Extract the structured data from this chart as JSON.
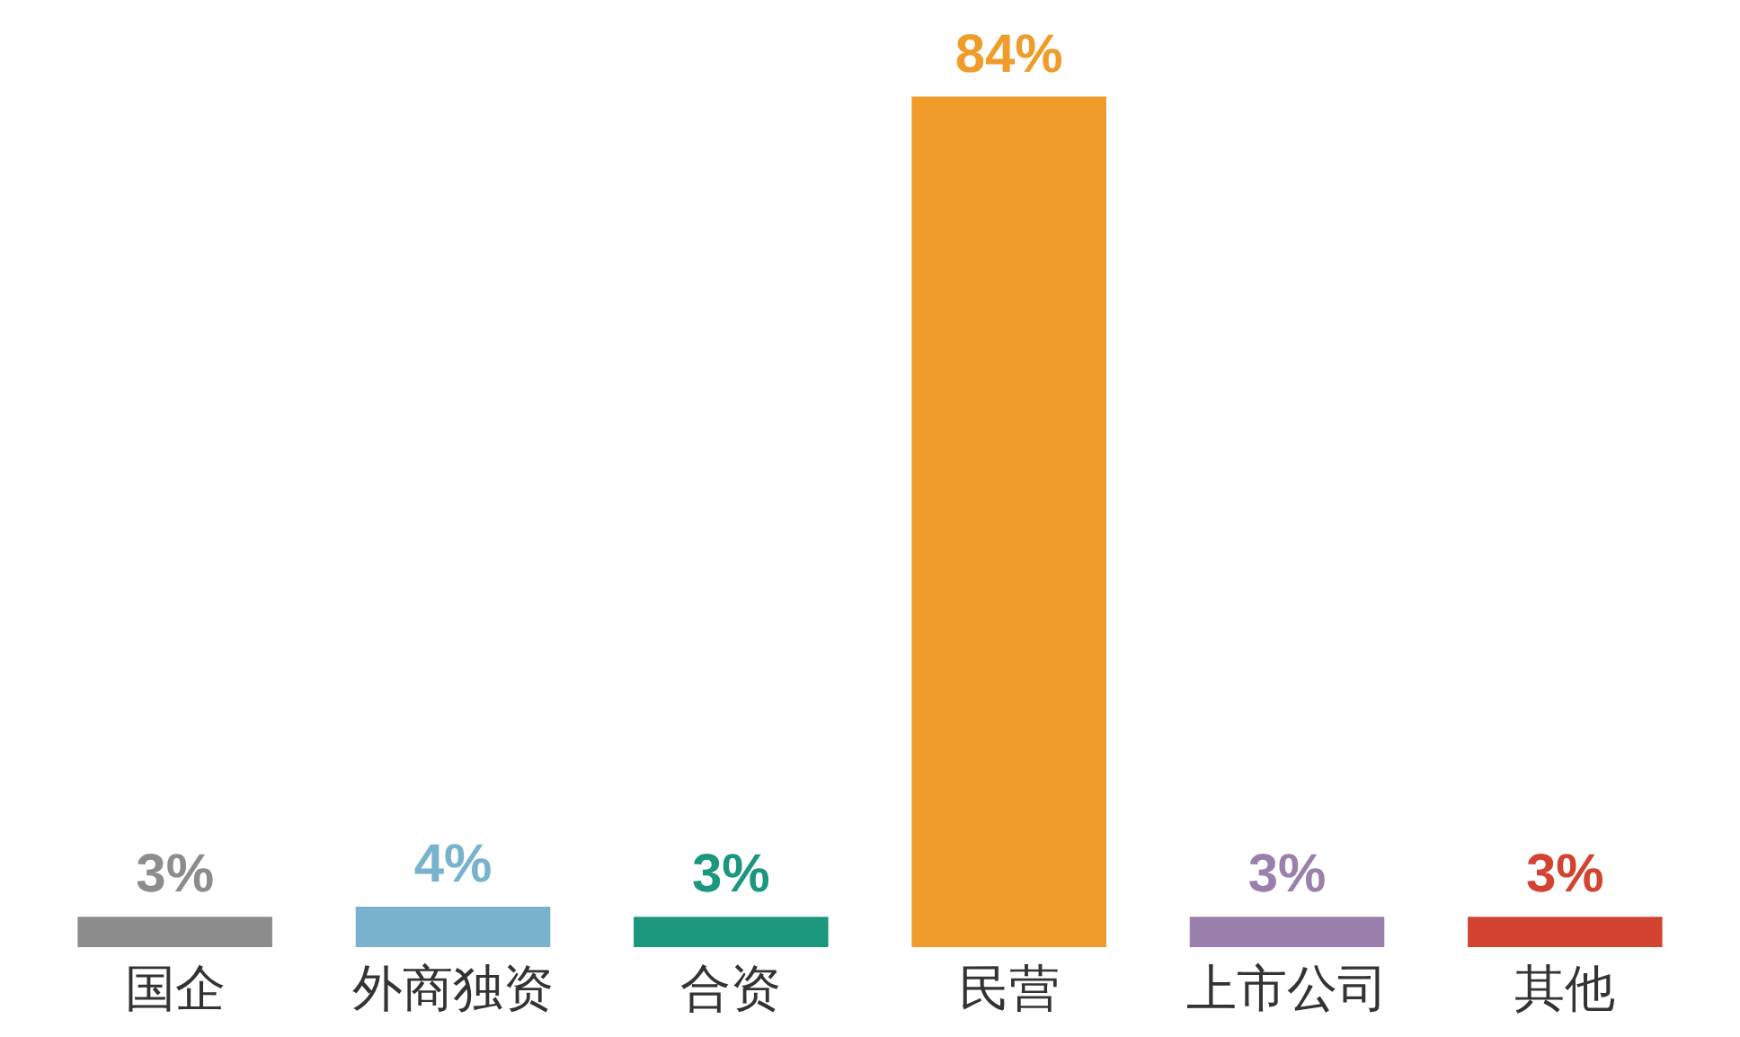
{
  "chart_data": {
    "type": "bar",
    "categories": [
      "国企",
      "外商独资",
      "合资",
      "民营",
      "上市公司",
      "其他"
    ],
    "values": [
      3,
      4,
      3,
      84,
      3,
      3
    ],
    "value_labels": [
      "3%",
      "4%",
      "3%",
      "84%",
      "3%",
      "3%"
    ],
    "colors": [
      "#8c8c8c",
      "#78b2cc",
      "#1a977c",
      "#ef9c2b",
      "#9a80ad",
      "#d24332"
    ],
    "tick_labels": "x"
  }
}
